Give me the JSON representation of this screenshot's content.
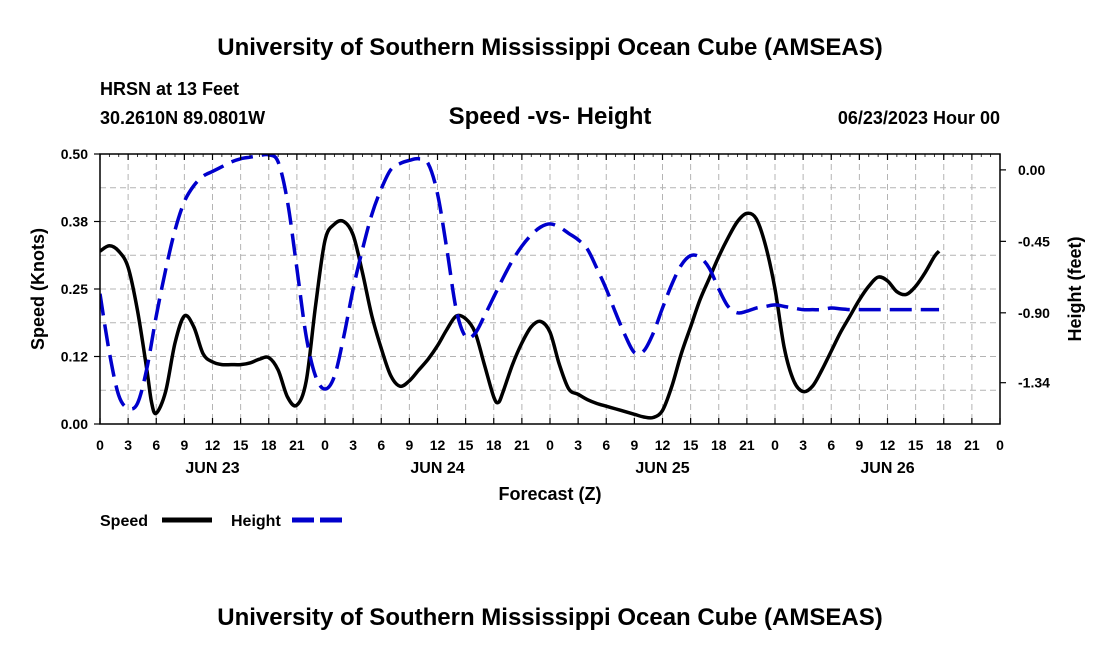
{
  "header": {
    "title": "University of Southern Mississippi Ocean Cube (AMSEAS)",
    "station": "HRSN at 13 Feet",
    "coords": "30.2610N  89.0801W",
    "subtitle": "Speed -vs- Height",
    "datetime": "06/23/2023 Hour 00"
  },
  "footer": {
    "title": "University of Southern Mississippi Ocean Cube (AMSEAS)"
  },
  "chart_data": {
    "type": "line",
    "title": "Speed -vs- Height",
    "xlabel": "Forecast (Z)",
    "ylabel": "Speed (Knots)",
    "y2label": "Height (feet)",
    "xlim": [
      0,
      96
    ],
    "ylim": [
      0,
      0.5
    ],
    "y2lim": [
      -1.6,
      0.1
    ],
    "grid": true,
    "x_tick_values": [
      0,
      3,
      6,
      9,
      12,
      15,
      18,
      21,
      24,
      27,
      30,
      33,
      36,
      39,
      42,
      45,
      48,
      51,
      54,
      57,
      60,
      63,
      66,
      69,
      72,
      75,
      78,
      81,
      84,
      87,
      90,
      93,
      96
    ],
    "x_tick_labels": [
      "0",
      "3",
      "6",
      "9",
      "12",
      "15",
      "18",
      "21",
      "0",
      "3",
      "6",
      "9",
      "12",
      "15",
      "18",
      "21",
      "0",
      "3",
      "6",
      "9",
      "12",
      "15",
      "18",
      "21",
      "0",
      "3",
      "6",
      "9",
      "12",
      "15",
      "18",
      "21",
      "0"
    ],
    "date_labels": [
      {
        "label": "JUN 23",
        "x": 12
      },
      {
        "label": "JUN 24",
        "x": 36
      },
      {
        "label": "JUN 25",
        "x": 60
      },
      {
        "label": "JUN 26",
        "x": 84
      }
    ],
    "y_ticks": [
      {
        "value": 0.0,
        "label": "0.00"
      },
      {
        "value": 0.125,
        "label": "0.12"
      },
      {
        "value": 0.25,
        "label": "0.25"
      },
      {
        "value": 0.375,
        "label": "0.38"
      },
      {
        "value": 0.5,
        "label": "0.50"
      }
    ],
    "y2_ticks": [
      {
        "value": 0.0,
        "label": "0.00"
      },
      {
        "value": -0.45,
        "label": "-0.45"
      },
      {
        "value": -0.9,
        "label": "-0.90"
      },
      {
        "value": -1.34,
        "label": "-1.34"
      }
    ],
    "legend": [
      {
        "label": "Speed",
        "color": "#000000",
        "style": "solid"
      },
      {
        "label": "Height",
        "color": "#0000cc",
        "style": "dashed"
      }
    ],
    "series": [
      {
        "name": "Speed",
        "axis": "left",
        "color": "#000000",
        "dash": "solid",
        "points": [
          [
            0,
            0.32
          ],
          [
            1,
            0.33
          ],
          [
            2,
            0.32
          ],
          [
            3,
            0.29
          ],
          [
            4,
            0.21
          ],
          [
            5,
            0.1
          ],
          [
            5.5,
            0.04
          ],
          [
            6,
            0.02
          ],
          [
            7,
            0.06
          ],
          [
            8,
            0.15
          ],
          [
            9,
            0.2
          ],
          [
            10,
            0.18
          ],
          [
            11,
            0.13
          ],
          [
            12,
            0.115
          ],
          [
            13,
            0.11
          ],
          [
            14,
            0.11
          ],
          [
            15,
            0.11
          ],
          [
            16,
            0.113
          ],
          [
            17,
            0.12
          ],
          [
            18,
            0.123
          ],
          [
            19,
            0.1
          ],
          [
            20,
            0.05
          ],
          [
            21,
            0.035
          ],
          [
            22,
            0.08
          ],
          [
            23,
            0.22
          ],
          [
            24,
            0.34
          ],
          [
            25,
            0.37
          ],
          [
            26,
            0.375
          ],
          [
            27,
            0.35
          ],
          [
            28,
            0.28
          ],
          [
            29,
            0.2
          ],
          [
            30,
            0.14
          ],
          [
            31,
            0.09
          ],
          [
            32,
            0.07
          ],
          [
            33,
            0.08
          ],
          [
            34,
            0.1
          ],
          [
            35,
            0.12
          ],
          [
            36,
            0.145
          ],
          [
            37,
            0.175
          ],
          [
            38,
            0.2
          ],
          [
            39,
            0.195
          ],
          [
            40,
            0.17
          ],
          [
            41,
            0.11
          ],
          [
            42,
            0.05
          ],
          [
            42.5,
            0.04
          ],
          [
            43,
            0.06
          ],
          [
            44,
            0.11
          ],
          [
            45,
            0.15
          ],
          [
            46,
            0.18
          ],
          [
            47,
            0.19
          ],
          [
            48,
            0.17
          ],
          [
            49,
            0.11
          ],
          [
            50,
            0.065
          ],
          [
            51,
            0.055
          ],
          [
            52,
            0.045
          ],
          [
            53,
            0.038
          ],
          [
            54,
            0.033
          ],
          [
            55,
            0.028
          ],
          [
            56,
            0.023
          ],
          [
            57,
            0.018
          ],
          [
            58,
            0.013
          ],
          [
            59,
            0.012
          ],
          [
            60,
            0.025
          ],
          [
            61,
            0.07
          ],
          [
            62,
            0.13
          ],
          [
            63,
            0.18
          ],
          [
            64,
            0.23
          ],
          [
            65,
            0.27
          ],
          [
            66,
            0.31
          ],
          [
            67,
            0.345
          ],
          [
            68,
            0.375
          ],
          [
            69,
            0.39
          ],
          [
            70,
            0.38
          ],
          [
            71,
            0.33
          ],
          [
            72,
            0.25
          ],
          [
            73,
            0.14
          ],
          [
            74,
            0.08
          ],
          [
            75,
            0.06
          ],
          [
            76,
            0.07
          ],
          [
            77,
            0.1
          ],
          [
            78,
            0.135
          ],
          [
            79,
            0.17
          ],
          [
            80,
            0.2
          ],
          [
            81,
            0.23
          ],
          [
            82,
            0.255
          ],
          [
            83,
            0.272
          ],
          [
            84,
            0.265
          ],
          [
            85,
            0.245
          ],
          [
            86,
            0.24
          ],
          [
            87,
            0.255
          ],
          [
            88,
            0.28
          ],
          [
            89,
            0.31
          ],
          [
            89.5,
            0.32
          ]
        ]
      },
      {
        "name": "Height",
        "axis": "right",
        "color": "#0000cc",
        "dash": "dashed",
        "points": [
          [
            0,
            -0.78
          ],
          [
            1,
            -1.15
          ],
          [
            2,
            -1.42
          ],
          [
            3,
            -1.5
          ],
          [
            4,
            -1.47
          ],
          [
            5,
            -1.25
          ],
          [
            6,
            -0.92
          ],
          [
            7,
            -0.63
          ],
          [
            8,
            -0.38
          ],
          [
            9,
            -0.2
          ],
          [
            10,
            -0.1
          ],
          [
            11,
            -0.04
          ],
          [
            12,
            -0.01
          ],
          [
            13,
            0.02
          ],
          [
            14,
            0.05
          ],
          [
            15,
            0.07
          ],
          [
            16,
            0.08
          ],
          [
            17,
            0.09
          ],
          [
            18,
            0.095
          ],
          [
            19,
            0.05
          ],
          [
            20,
            -0.2
          ],
          [
            21,
            -0.62
          ],
          [
            22,
            -1.05
          ],
          [
            23,
            -1.3
          ],
          [
            24,
            -1.38
          ],
          [
            25,
            -1.3
          ],
          [
            26,
            -1.05
          ],
          [
            27,
            -0.75
          ],
          [
            28,
            -0.5
          ],
          [
            29,
            -0.28
          ],
          [
            30,
            -0.12
          ],
          [
            31,
            0.0
          ],
          [
            32,
            0.04
          ],
          [
            33,
            0.06
          ],
          [
            34,
            0.07
          ],
          [
            35,
            0.04
          ],
          [
            36,
            -0.15
          ],
          [
            37,
            -0.5
          ],
          [
            38,
            -0.88
          ],
          [
            39,
            -1.05
          ],
          [
            40,
            -1.03
          ],
          [
            41,
            -0.92
          ],
          [
            42,
            -0.8
          ],
          [
            43,
            -0.68
          ],
          [
            44,
            -0.57
          ],
          [
            45,
            -0.48
          ],
          [
            46,
            -0.41
          ],
          [
            47,
            -0.36
          ],
          [
            48,
            -0.34
          ],
          [
            49,
            -0.36
          ],
          [
            50,
            -0.4
          ],
          [
            51,
            -0.44
          ],
          [
            52,
            -0.5
          ],
          [
            53,
            -0.62
          ],
          [
            54,
            -0.75
          ],
          [
            55,
            -0.9
          ],
          [
            56,
            -1.04
          ],
          [
            57,
            -1.15
          ],
          [
            58,
            -1.14
          ],
          [
            59,
            -1.03
          ],
          [
            60,
            -0.87
          ],
          [
            61,
            -0.72
          ],
          [
            62,
            -0.6
          ],
          [
            63,
            -0.54
          ],
          [
            64,
            -0.55
          ],
          [
            65,
            -0.62
          ],
          [
            66,
            -0.75
          ],
          [
            67,
            -0.86
          ],
          [
            68,
            -0.9
          ],
          [
            69,
            -0.89
          ],
          [
            70,
            -0.87
          ],
          [
            71,
            -0.86
          ],
          [
            72,
            -0.85
          ],
          [
            73,
            -0.86
          ],
          [
            74,
            -0.87
          ],
          [
            75,
            -0.88
          ],
          [
            76,
            -0.88
          ],
          [
            77,
            -0.88
          ],
          [
            78,
            -0.87
          ],
          [
            79,
            -0.875
          ],
          [
            80,
            -0.88
          ],
          [
            81,
            -0.88
          ],
          [
            82,
            -0.88
          ],
          [
            83,
            -0.88
          ],
          [
            84,
            -0.88
          ],
          [
            85,
            -0.88
          ],
          [
            86,
            -0.88
          ],
          [
            87,
            -0.88
          ],
          [
            88,
            -0.88
          ],
          [
            89,
            -0.88
          ],
          [
            89.5,
            -0.88
          ]
        ]
      }
    ]
  }
}
